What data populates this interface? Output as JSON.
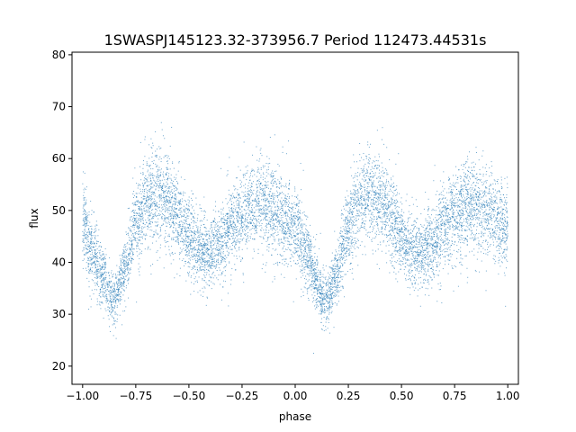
{
  "chart_data": {
    "type": "scatter",
    "title": "1SWASPJ145123.32-373956.7 Period 112473.44531s",
    "xlabel": "phase",
    "ylabel": "flux",
    "xlim": [
      -1.05,
      1.05
    ],
    "ylim": [
      16.5,
      80.5
    ],
    "x_ticks": [
      -1.0,
      -0.75,
      -0.5,
      -0.25,
      0.0,
      0.25,
      0.5,
      0.75,
      1.0
    ],
    "x_tick_labels": [
      "−1.00",
      "−0.75",
      "−0.50",
      "−0.25",
      "0.00",
      "0.25",
      "0.50",
      "0.75",
      "1.00"
    ],
    "y_ticks": [
      20,
      30,
      40,
      50,
      60,
      70,
      80
    ],
    "y_tick_labels": [
      "20",
      "30",
      "40",
      "50",
      "60",
      "70",
      "80"
    ],
    "grid": false,
    "legend": "none",
    "marker_color": "#1f77b4",
    "series": [
      {
        "values": [
          {
            "x": -1.0,
            "y": 47
          },
          {
            "x": -0.95,
            "y": 42
          },
          {
            "x": -0.9,
            "y": 37
          },
          {
            "x": -0.87,
            "y": 33
          },
          {
            "x": -0.85,
            "y": 33
          },
          {
            "x": -0.8,
            "y": 39
          },
          {
            "x": -0.75,
            "y": 47
          },
          {
            "x": -0.7,
            "y": 52
          },
          {
            "x": -0.65,
            "y": 53
          },
          {
            "x": -0.6,
            "y": 52
          },
          {
            "x": -0.55,
            "y": 49
          },
          {
            "x": -0.5,
            "y": 45
          },
          {
            "x": -0.45,
            "y": 42
          },
          {
            "x": -0.4,
            "y": 42
          },
          {
            "x": -0.35,
            "y": 44
          },
          {
            "x": -0.3,
            "y": 47
          },
          {
            "x": -0.25,
            "y": 49
          },
          {
            "x": -0.2,
            "y": 51
          },
          {
            "x": -0.15,
            "y": 51
          },
          {
            "x": -0.1,
            "y": 50
          },
          {
            "x": -0.05,
            "y": 48
          },
          {
            "x": 0.0,
            "y": 47
          },
          {
            "x": 0.05,
            "y": 42
          },
          {
            "x": 0.1,
            "y": 37
          },
          {
            "x": 0.13,
            "y": 33
          },
          {
            "x": 0.15,
            "y": 33
          },
          {
            "x": 0.2,
            "y": 39
          },
          {
            "x": 0.25,
            "y": 47
          },
          {
            "x": 0.3,
            "y": 52
          },
          {
            "x": 0.35,
            "y": 53
          },
          {
            "x": 0.4,
            "y": 52
          },
          {
            "x": 0.45,
            "y": 49
          },
          {
            "x": 0.5,
            "y": 45
          },
          {
            "x": 0.55,
            "y": 42
          },
          {
            "x": 0.6,
            "y": 42
          },
          {
            "x": 0.65,
            "y": 44
          },
          {
            "x": 0.7,
            "y": 47
          },
          {
            "x": 0.75,
            "y": 49
          },
          {
            "x": 0.8,
            "y": 51
          },
          {
            "x": 0.85,
            "y": 51
          },
          {
            "x": 0.9,
            "y": 50
          },
          {
            "x": 0.95,
            "y": 48
          },
          {
            "x": 1.0,
            "y": 47
          }
        ]
      }
    ]
  }
}
